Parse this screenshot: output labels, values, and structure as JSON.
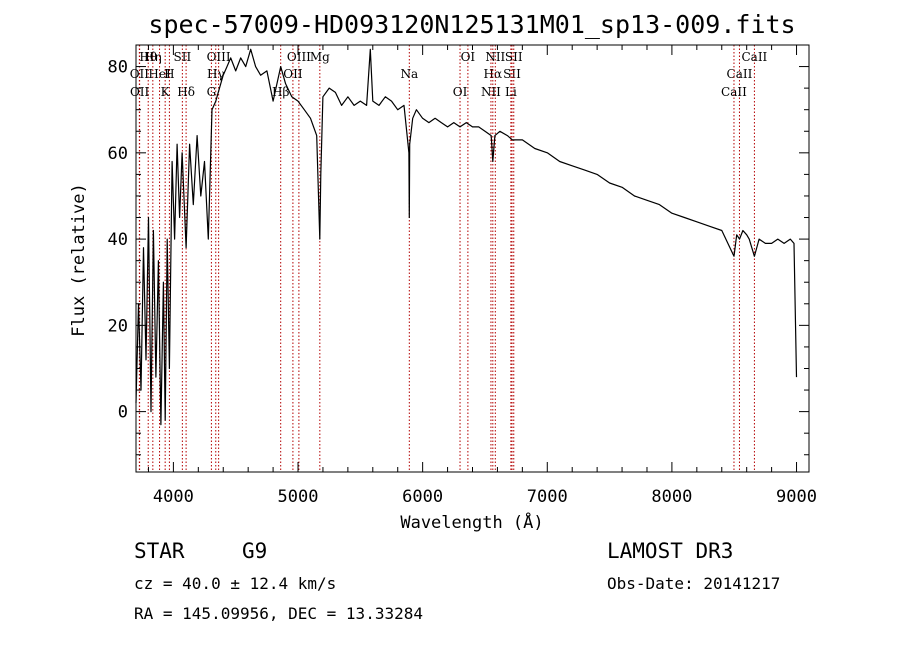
{
  "chart_data": {
    "type": "line",
    "title": "spec-57009-HD093120N125131M01_sp13-009.fits",
    "xlabel": "Wavelength (Å)",
    "ylabel": "Flux (relative)",
    "xlim": [
      3700,
      9100
    ],
    "ylim": [
      -14,
      85
    ],
    "xticks": [
      4000,
      5000,
      6000,
      7000,
      8000,
      9000
    ],
    "yticks": [
      0,
      20,
      40,
      60,
      80
    ],
    "series": [
      {
        "name": "spectrum",
        "x": [
          3700,
          3720,
          3740,
          3760,
          3780,
          3800,
          3820,
          3840,
          3860,
          3880,
          3900,
          3920,
          3934,
          3950,
          3968,
          3990,
          4010,
          4030,
          4050,
          4070,
          4102,
          4130,
          4160,
          4190,
          4220,
          4250,
          4280,
          4310,
          4340,
          4370,
          4400,
          4430,
          4460,
          4500,
          4540,
          4580,
          4620,
          4660,
          4700,
          4750,
          4800,
          4861,
          4900,
          4950,
          5000,
          5050,
          5100,
          5150,
          5175,
          5183,
          5200,
          5250,
          5300,
          5350,
          5400,
          5450,
          5500,
          5550,
          5580,
          5600,
          5650,
          5700,
          5750,
          5800,
          5850,
          5890,
          5893,
          5896,
          5920,
          5950,
          6000,
          6050,
          6100,
          6150,
          6200,
          6250,
          6300,
          6350,
          6400,
          6450,
          6500,
          6550,
          6563,
          6580,
          6620,
          6680,
          6720,
          6800,
          6900,
          7000,
          7100,
          7200,
          7300,
          7400,
          7500,
          7600,
          7700,
          7800,
          7900,
          8000,
          8100,
          8200,
          8300,
          8400,
          8498,
          8520,
          8542,
          8570,
          8600,
          8620,
          8662,
          8700,
          8750,
          8800,
          8850,
          8900,
          8950,
          8980,
          9000
        ],
        "values": [
          2,
          25,
          5,
          38,
          12,
          45,
          0,
          42,
          8,
          35,
          -3,
          30,
          -2,
          40,
          10,
          58,
          40,
          62,
          45,
          60,
          38,
          62,
          48,
          64,
          50,
          58,
          40,
          70,
          72,
          75,
          78,
          80,
          82,
          79,
          82,
          80,
          84,
          80,
          78,
          79,
          72,
          80,
          76,
          73,
          72,
          70,
          68,
          64,
          40,
          55,
          73,
          75,
          74,
          71,
          73,
          71,
          72,
          71,
          84,
          72,
          71,
          73,
          72,
          70,
          71,
          60,
          45,
          62,
          68,
          70,
          68,
          67,
          68,
          67,
          66,
          67,
          66,
          67,
          66,
          66,
          65,
          64,
          58,
          64,
          65,
          64,
          63,
          63,
          61,
          60,
          58,
          57,
          56,
          55,
          53,
          52,
          50,
          49,
          48,
          46,
          45,
          44,
          43,
          42,
          36,
          41,
          40,
          42,
          41,
          40,
          36,
          40,
          39,
          39,
          40,
          39,
          40,
          39,
          8
        ]
      }
    ],
    "line_markers": [
      {
        "label": "Hθ",
        "x": 3798
      },
      {
        "label": "OII",
        "x": 3727
      },
      {
        "label": "OII",
        "x": 3729
      },
      {
        "label": "Hη",
        "x": 3835
      },
      {
        "label": "HeI",
        "x": 3889
      },
      {
        "label": "K",
        "x": 3934
      },
      {
        "label": "SII",
        "x": 4072
      },
      {
        "label": "H",
        "x": 3968
      },
      {
        "label": "Hδ",
        "x": 4102
      },
      {
        "label": "OIII",
        "x": 4363
      },
      {
        "label": "Hγ",
        "x": 4340
      },
      {
        "label": "G",
        "x": 4305
      },
      {
        "label": "OIII",
        "x": 5007
      },
      {
        "label": "OII",
        "x": 4959
      },
      {
        "label": "Hβ",
        "x": 4861
      },
      {
        "label": "Mg",
        "x": 5175
      },
      {
        "label": "Na",
        "x": 5893
      },
      {
        "label": "OI",
        "x": 6300
      },
      {
        "label": "OI",
        "x": 6363
      },
      {
        "label": "Hα",
        "x": 6563
      },
      {
        "label": "NII",
        "x": 6548
      },
      {
        "label": "NII",
        "x": 6583
      },
      {
        "label": "SII",
        "x": 6717
      },
      {
        "label": "Li",
        "x": 6708
      },
      {
        "label": "SII",
        "x": 6731
      },
      {
        "label": "CaII",
        "x": 8542
      },
      {
        "label": "CaII",
        "x": 8498
      },
      {
        "label": "CaII",
        "x": 8662
      }
    ]
  },
  "info": {
    "class": "STAR",
    "subclass": "G9",
    "survey": "LAMOST DR3",
    "cz": "cz = 40.0 ± 12.4 km/s",
    "obs_date": "Obs-Date: 20141217",
    "coords": "RA = 145.09956, DEC =  13.33284"
  }
}
